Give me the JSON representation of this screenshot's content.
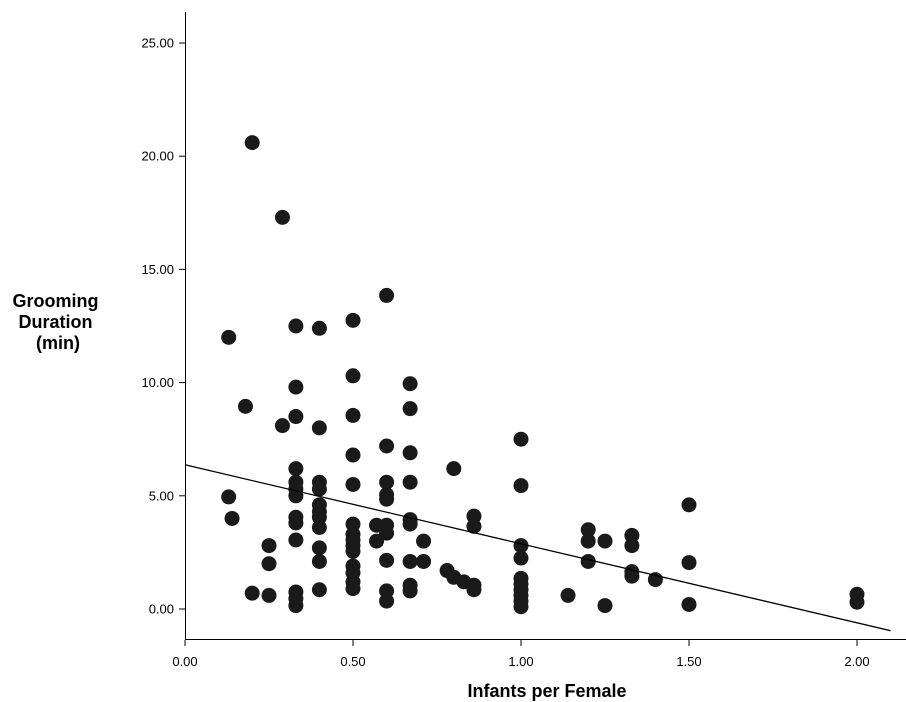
{
  "chart_data": {
    "type": "scatter",
    "title": "",
    "xlabel": "Infants per Female",
    "ylabel_lines": [
      "Grooming",
      "Duration",
      "(min)"
    ],
    "xlim": [
      0.0,
      2.1
    ],
    "ylim": [
      -1.4,
      26.2
    ],
    "xticks": [
      0.0,
      0.5,
      1.0,
      1.5,
      2.0
    ],
    "xtick_labels": [
      "0.00",
      "0.50",
      "1.00",
      "1.50",
      "2.00"
    ],
    "yticks": [
      0.0,
      5.0,
      10.0,
      15.0,
      20.0,
      25.0
    ],
    "ytick_labels": [
      "0.00",
      "5.00",
      "10.00",
      "15.00",
      "20.00",
      "25.00"
    ],
    "grid": false,
    "legend": "none",
    "marker_color": "#1a1a1a",
    "fit_line": {
      "intercept": 6.37,
      "slope": -3.49
    },
    "points": [
      [
        0.13,
        12.0
      ],
      [
        0.13,
        4.95
      ],
      [
        0.14,
        4.0
      ],
      [
        0.18,
        8.95
      ],
      [
        0.2,
        20.6
      ],
      [
        0.2,
        0.7
      ],
      [
        0.25,
        2.8
      ],
      [
        0.25,
        2.0
      ],
      [
        0.25,
        0.6
      ],
      [
        0.29,
        17.3
      ],
      [
        0.29,
        8.1
      ],
      [
        0.33,
        12.5
      ],
      [
        0.33,
        9.8
      ],
      [
        0.33,
        8.5
      ],
      [
        0.33,
        6.2
      ],
      [
        0.33,
        5.6
      ],
      [
        0.33,
        5.3
      ],
      [
        0.33,
        5.0
      ],
      [
        0.33,
        4.05
      ],
      [
        0.33,
        3.8
      ],
      [
        0.33,
        3.05
      ],
      [
        0.33,
        0.75
      ],
      [
        0.33,
        0.45
      ],
      [
        0.33,
        0.15
      ],
      [
        0.4,
        12.4
      ],
      [
        0.4,
        8.0
      ],
      [
        0.4,
        5.6
      ],
      [
        0.4,
        5.3
      ],
      [
        0.4,
        4.6
      ],
      [
        0.4,
        4.3
      ],
      [
        0.4,
        4.05
      ],
      [
        0.4,
        3.6
      ],
      [
        0.4,
        2.7
      ],
      [
        0.4,
        2.1
      ],
      [
        0.4,
        0.85
      ],
      [
        0.5,
        12.75
      ],
      [
        0.5,
        10.3
      ],
      [
        0.5,
        8.55
      ],
      [
        0.5,
        6.8
      ],
      [
        0.5,
        5.5
      ],
      [
        0.5,
        3.75
      ],
      [
        0.5,
        3.3
      ],
      [
        0.5,
        3.05
      ],
      [
        0.5,
        2.8
      ],
      [
        0.5,
        2.55
      ],
      [
        0.5,
        1.9
      ],
      [
        0.5,
        1.6
      ],
      [
        0.5,
        1.2
      ],
      [
        0.5,
        0.9
      ],
      [
        0.57,
        3.7
      ],
      [
        0.57,
        3.0
      ],
      [
        0.6,
        13.85
      ],
      [
        0.6,
        7.2
      ],
      [
        0.6,
        5.6
      ],
      [
        0.6,
        5.05
      ],
      [
        0.6,
        4.85
      ],
      [
        0.6,
        3.7
      ],
      [
        0.6,
        3.35
      ],
      [
        0.6,
        2.15
      ],
      [
        0.6,
        0.8
      ],
      [
        0.6,
        0.35
      ],
      [
        0.67,
        9.95
      ],
      [
        0.67,
        8.85
      ],
      [
        0.67,
        6.9
      ],
      [
        0.67,
        5.6
      ],
      [
        0.67,
        3.95
      ],
      [
        0.67,
        3.75
      ],
      [
        0.67,
        2.1
      ],
      [
        0.67,
        1.05
      ],
      [
        0.67,
        0.8
      ],
      [
        0.71,
        3.0
      ],
      [
        0.71,
        2.1
      ],
      [
        0.78,
        1.7
      ],
      [
        0.8,
        6.2
      ],
      [
        0.8,
        1.4
      ],
      [
        0.83,
        1.2
      ],
      [
        0.86,
        4.1
      ],
      [
        0.86,
        3.65
      ],
      [
        0.86,
        1.05
      ],
      [
        0.86,
        0.85
      ],
      [
        1.0,
        7.5
      ],
      [
        1.0,
        5.45
      ],
      [
        1.0,
        2.8
      ],
      [
        1.0,
        2.25
      ],
      [
        1.0,
        1.35
      ],
      [
        1.0,
        1.1
      ],
      [
        1.0,
        0.85
      ],
      [
        1.0,
        0.6
      ],
      [
        1.0,
        0.35
      ],
      [
        1.0,
        0.1
      ],
      [
        1.14,
        0.6
      ],
      [
        1.2,
        3.5
      ],
      [
        1.2,
        3.0
      ],
      [
        1.2,
        2.1
      ],
      [
        1.25,
        3.0
      ],
      [
        1.25,
        0.15
      ],
      [
        1.33,
        3.25
      ],
      [
        1.33,
        2.8
      ],
      [
        1.33,
        1.65
      ],
      [
        1.33,
        1.45
      ],
      [
        1.4,
        1.3
      ],
      [
        1.5,
        4.6
      ],
      [
        1.5,
        2.05
      ],
      [
        1.5,
        0.2
      ],
      [
        2.0,
        0.65
      ],
      [
        2.0,
        0.3
      ]
    ]
  }
}
